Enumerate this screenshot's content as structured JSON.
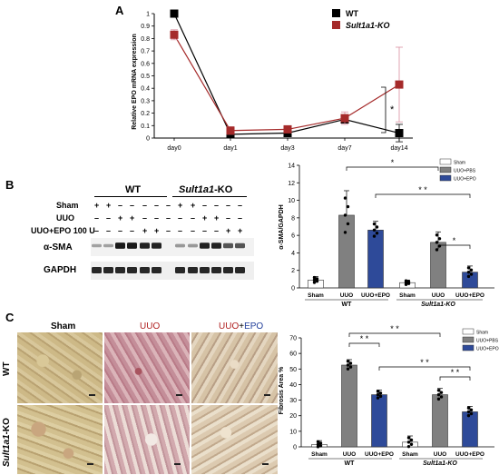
{
  "panels": {
    "a": "A",
    "b": "B",
    "c": "C"
  },
  "chart_data": [
    {
      "type": "line",
      "panel": "A",
      "ylabel": "Relative EPO mRNA expression",
      "xlabel": "",
      "x": [
        "day0",
        "day1",
        "day3",
        "day7",
        "day14"
      ],
      "ylim": [
        0,
        1.0
      ],
      "yticks": [
        "0",
        "0.1",
        "0.2",
        "0.3",
        "0.4",
        "0.5",
        "0.6",
        "0.7",
        "0.8",
        "0.9",
        "1"
      ],
      "legend_position": "top-right",
      "series": [
        {
          "name": "WT",
          "color": "#000000",
          "values": [
            1.0,
            0.03,
            0.04,
            0.15,
            0.04
          ],
          "err": [
            0,
            0.02,
            0.01,
            0.03,
            0.07
          ]
        },
        {
          "name": "Sult1a1-KO",
          "color": "#a52a2a",
          "values": [
            0.83,
            0.06,
            0.07,
            0.16,
            0.43
          ],
          "err": [
            0.04,
            0.03,
            0.02,
            0.05,
            0.3
          ]
        }
      ],
      "annotations": [
        {
          "text": "*",
          "between": "day14"
        }
      ]
    },
    {
      "type": "bar",
      "panel": "B",
      "ylabel": "α-SMA/GAPDH",
      "ylim": [
        0,
        14
      ],
      "yticks": [
        "0",
        "2",
        "4",
        "6",
        "8",
        "10",
        "12",
        "14"
      ],
      "categories": [
        "Sham",
        "UUO",
        "UUO+EPO",
        "Sham",
        "UUO",
        "UUO+EPO"
      ],
      "groups": [
        "WT",
        "Sult1a1-KO"
      ],
      "values": [
        0.9,
        8.3,
        6.6,
        0.6,
        5.2,
        1.8
      ],
      "err": [
        0.4,
        2.8,
        1.0,
        0.3,
        1.2,
        0.7
      ],
      "legend": [
        "Sham",
        "UUO+PBS",
        "UUO+EPO"
      ],
      "legend_position": "top-right",
      "annotations": [
        "*",
        "* *",
        "*"
      ]
    },
    {
      "type": "bar",
      "panel": "C",
      "ylabel": "Fibrosis Area %",
      "ylim": [
        0,
        70
      ],
      "yticks": [
        "0",
        "10",
        "20",
        "30",
        "40",
        "50",
        "60",
        "70"
      ],
      "categories": [
        "Sham",
        "UUO",
        "UUO+EPO",
        "Sham",
        "UUO",
        "UUO+EPO"
      ],
      "groups": [
        "WT",
        "Sult1a1-KO"
      ],
      "values": [
        1.5,
        52.5,
        33.5,
        3.0,
        33.5,
        22.5
      ],
      "err": [
        2.5,
        3.5,
        3.0,
        4.0,
        4.0,
        3.5
      ],
      "legend": [
        "Sham",
        "UUO+PBS",
        "UUO+EPO"
      ],
      "legend_position": "top-right",
      "annotations": [
        "* *",
        "* *",
        "* *",
        "* *"
      ]
    }
  ],
  "blot": {
    "wt": "WT",
    "ko_prefix": "Sult1a1",
    "ko_suffix": "-KO",
    "rows": [
      {
        "label": "Sham",
        "marks": [
          "+",
          "+",
          "–",
          "–",
          "–",
          "–",
          "–",
          "+",
          "+",
          "–",
          "–",
          "–",
          "–"
        ]
      },
      {
        "label": "UUO",
        "marks": [
          "–",
          "–",
          "+",
          "+",
          "–",
          "–",
          "–",
          "–",
          "–",
          "+",
          "+",
          "–",
          "–"
        ]
      },
      {
        "label": "UUO+EPO 100 U",
        "marks": [
          "–",
          "–",
          "–",
          "–",
          "+",
          "+",
          "–",
          "–",
          "–",
          "–",
          "–",
          "+",
          "+"
        ]
      }
    ],
    "bands": [
      "α-SMA",
      "GAPDH"
    ]
  },
  "histology": {
    "col_sham": "Sham",
    "col_uuo": "UUO",
    "col_epo_1": "UUO",
    "col_epo_plus": "+",
    "col_epo_2": "EPO",
    "row_wt": "WT",
    "row_ko_prefix": "Sult1a1",
    "row_ko_suffix": "-KO"
  },
  "colors": {
    "wt_line": "#000000",
    "ko_line": "#a52a2a",
    "sham_bar": "#ffffff",
    "uuo_bar": "#808080",
    "epo_bar": "#2e4a99",
    "stain_sham": "#c9b482",
    "stain_uuo": "#c79ea7",
    "stain_epo": "#d5c4a6"
  }
}
